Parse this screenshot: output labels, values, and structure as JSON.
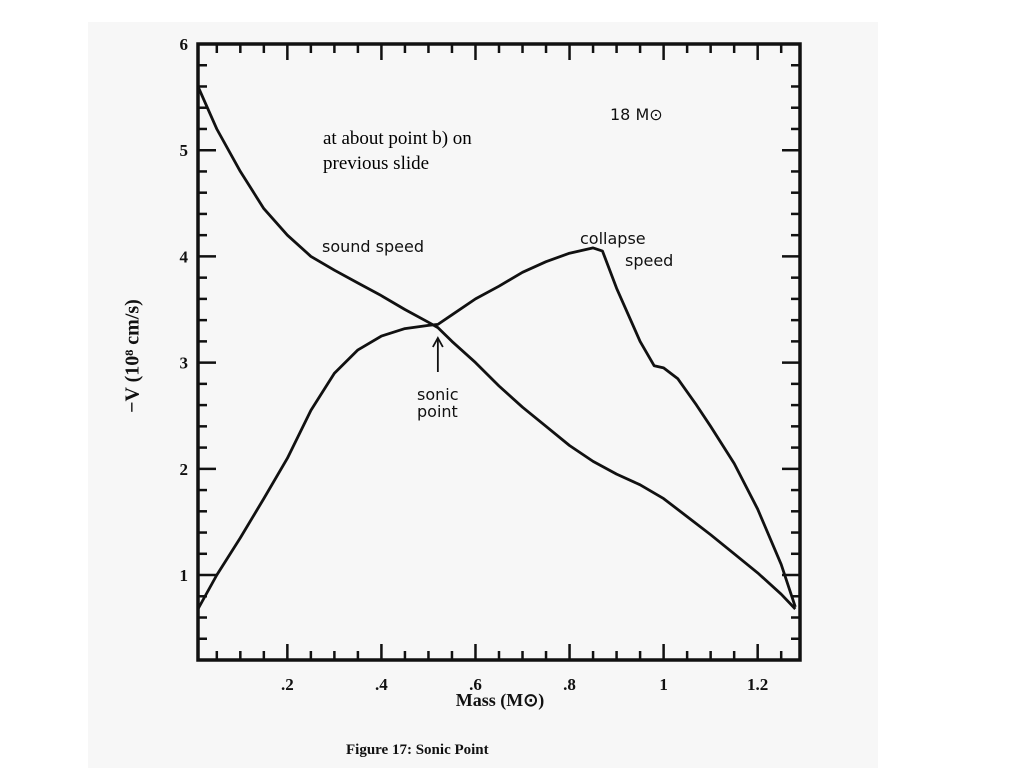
{
  "slide": {
    "note": "at about point b) on\nprevious slide",
    "caption": "Figure 17: Sonic Point"
  },
  "chart_data": {
    "type": "line",
    "title": "",
    "xlabel": "Mass (M⊙)",
    "ylabel": "−V (10⁸ cm/s)",
    "xlim": [
      0.01,
      1.29
    ],
    "ylim": [
      0.2,
      6.0
    ],
    "xticks": [
      0.2,
      0.4,
      0.6,
      0.8,
      1.0,
      1.2
    ],
    "xtick_labels": [
      ".2",
      ".4",
      ".6",
      ".8",
      "1",
      "1.2"
    ],
    "yticks": [
      1,
      2,
      3,
      4,
      5,
      6
    ],
    "ytick_labels": [
      "1",
      "2",
      "3",
      "4",
      "5",
      "6"
    ],
    "grid": false,
    "series": [
      {
        "name": "sound speed",
        "x": [
          0.01,
          0.05,
          0.1,
          0.15,
          0.2,
          0.25,
          0.3,
          0.35,
          0.4,
          0.45,
          0.5,
          0.52,
          0.55,
          0.6,
          0.65,
          0.7,
          0.75,
          0.8,
          0.85,
          0.9,
          0.95,
          1.0,
          1.05,
          1.1,
          1.15,
          1.2,
          1.25,
          1.28
        ],
        "y": [
          5.6,
          5.2,
          4.8,
          4.45,
          4.2,
          4.0,
          3.87,
          3.75,
          3.63,
          3.5,
          3.38,
          3.33,
          3.2,
          3.0,
          2.78,
          2.58,
          2.4,
          2.22,
          2.07,
          1.95,
          1.85,
          1.72,
          1.55,
          1.38,
          1.2,
          1.02,
          0.82,
          0.68
        ]
      },
      {
        "name": "collapse speed",
        "x": [
          0.01,
          0.05,
          0.1,
          0.15,
          0.2,
          0.25,
          0.3,
          0.35,
          0.4,
          0.45,
          0.5,
          0.52,
          0.55,
          0.6,
          0.65,
          0.7,
          0.75,
          0.8,
          0.85,
          0.87,
          0.9,
          0.95,
          0.98,
          1.0,
          1.03,
          1.07,
          1.1,
          1.15,
          1.2,
          1.25,
          1.28
        ],
        "y": [
          0.68,
          1.0,
          1.35,
          1.72,
          2.1,
          2.55,
          2.9,
          3.12,
          3.25,
          3.32,
          3.35,
          3.36,
          3.45,
          3.6,
          3.72,
          3.85,
          3.95,
          4.03,
          4.08,
          4.05,
          3.7,
          3.2,
          2.97,
          2.95,
          2.85,
          2.6,
          2.4,
          2.05,
          1.62,
          1.1,
          0.7
        ]
      }
    ],
    "annotations": [
      "18 M⊙",
      "sound speed",
      "collapse\nspeed",
      "sonic\npoint"
    ]
  }
}
